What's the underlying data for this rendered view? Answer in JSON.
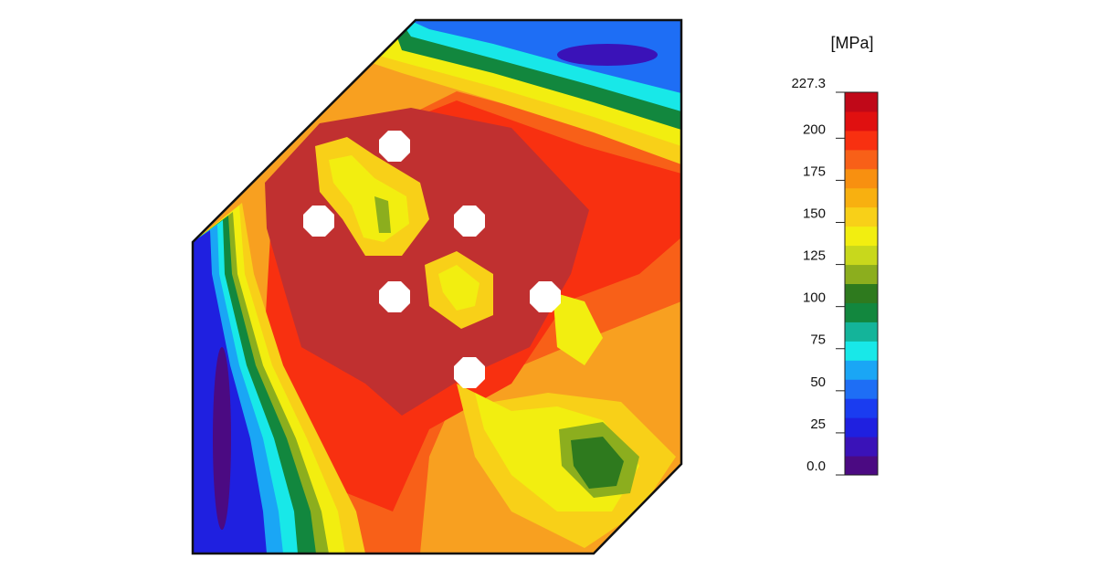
{
  "chart_data": {
    "type": "contour",
    "colorbar": {
      "label": "[MPa]",
      "lim": [
        0,
        227.3
      ],
      "ticks": [
        {
          "value": 0,
          "label": "0.0"
        },
        25,
        50,
        75,
        100,
        125,
        150,
        175,
        200,
        227.3
      ],
      "colors": [
        "#4b0a82",
        "#3a12b8",
        "#1f20e0",
        "#1a3cf0",
        "#1e6ef5",
        "#1aa6f5",
        "#18e8e8",
        "#14b49a",
        "#12873e",
        "#2e7a1e",
        "#8cae1e",
        "#c8d81c",
        "#f2ee10",
        "#f8d018",
        "#f8b010",
        "#f89010",
        "#f86018",
        "#f83010",
        "#e01010",
        "#c00818"
      ]
    }
  }
}
